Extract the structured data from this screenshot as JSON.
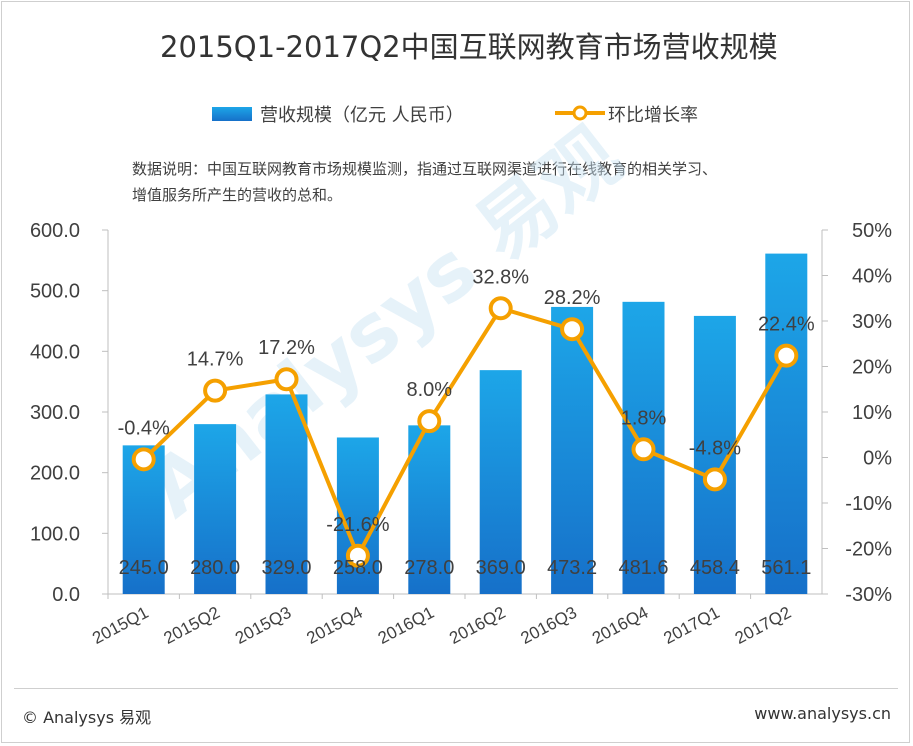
{
  "title": "2015Q1-2017Q2中国互联网教育市场营收规模",
  "legend": {
    "bar_label": "营收规模（亿元 人民币）",
    "line_label": "环比增长率"
  },
  "note": {
    "line1": "数据说明：中国互联网教育市场规模监测，指通过互联网渠道进行在线教育的相关学习、",
    "line2": "增值服务所产生的营收的总和。"
  },
  "footer": {
    "left": "© Analysys 易观",
    "right": "www.analysys.cn"
  },
  "watermark": {
    "brand": "Analysys 易观"
  },
  "colors": {
    "bar_top": "#1da6e8",
    "bar_bottom": "#1670c9",
    "line": "#f5a000",
    "axis": "#bfbfbf"
  },
  "chart_data": {
    "type": "bar",
    "title": "2015Q1-2017Q2中国互联网教育市场营收规模",
    "categories": [
      "2015Q1",
      "2015Q2",
      "2015Q3",
      "2015Q4",
      "2016Q1",
      "2016Q2",
      "2016Q3",
      "2016Q4",
      "2017Q1",
      "2017Q2"
    ],
    "series": [
      {
        "name": "营收规模（亿元 人民币）",
        "type": "bar",
        "axis": "left",
        "values": [
          245.0,
          280.0,
          329.0,
          258.0,
          278.0,
          369.0,
          473.2,
          481.6,
          458.4,
          561.1
        ],
        "labels": [
          "245.0",
          "280.0",
          "329.0",
          "258.0",
          "278.0",
          "369.0",
          "473.2",
          "481.6",
          "458.4",
          "561.1"
        ]
      },
      {
        "name": "环比增长率",
        "type": "line",
        "axis": "right",
        "values": [
          -0.4,
          14.7,
          17.2,
          -21.6,
          8.0,
          32.8,
          28.2,
          1.8,
          -4.8,
          22.4
        ],
        "labels": [
          "-0.4%",
          "14.7%",
          "17.2%",
          "-21.6%",
          "8.0%",
          "32.8%",
          "28.2%",
          "1.8%",
          "-4.8%",
          "22.4%"
        ]
      }
    ],
    "ylim": [
      0,
      600
    ],
    "y_ticks": [
      "0.0",
      "100.0",
      "200.0",
      "300.0",
      "400.0",
      "500.0",
      "600.0"
    ],
    "y2lim": [
      -30,
      50
    ],
    "y2_ticks": [
      "-30%",
      "-20%",
      "-10%",
      "0%",
      "10%",
      "20%",
      "30%",
      "40%",
      "50%"
    ],
    "xlabel": "",
    "ylabel": "",
    "grid": false,
    "legend_position": "top"
  }
}
